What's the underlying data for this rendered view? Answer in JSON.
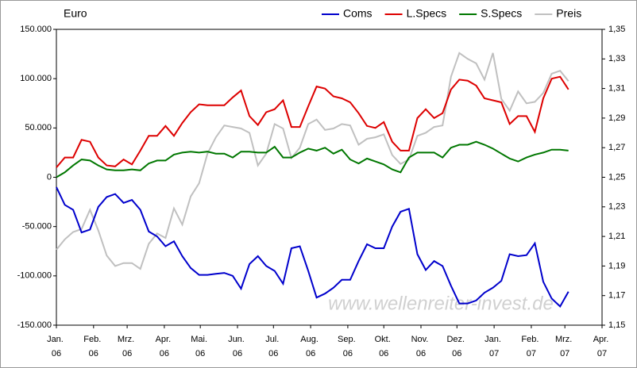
{
  "chart_data": {
    "type": "line",
    "y_label": "Euro",
    "watermark": "www.wellenreiter-invest.de",
    "x": [
      0,
      7,
      14,
      21,
      28,
      35,
      42,
      49,
      56,
      63,
      70,
      77,
      84,
      91,
      98,
      105,
      112,
      119,
      126,
      133,
      140,
      147,
      154,
      161,
      168,
      175,
      182,
      189,
      196,
      203,
      210,
      217,
      224,
      231,
      238,
      245,
      252,
      259,
      266,
      273,
      280,
      287,
      294,
      301,
      308,
      315,
      322,
      329,
      336,
      343,
      350,
      357,
      364,
      371,
      378,
      385,
      392,
      399,
      406,
      413,
      420,
      427
    ],
    "xlim": [
      0,
      455
    ],
    "xticks": [
      {
        "value": 0,
        "label": "Jan. 06"
      },
      {
        "value": 31,
        "label": "Feb. 06"
      },
      {
        "value": 59,
        "label": "Mrz. 06"
      },
      {
        "value": 90,
        "label": "Apr. 06"
      },
      {
        "value": 120,
        "label": "Mai. 06"
      },
      {
        "value": 151,
        "label": "Jun. 06"
      },
      {
        "value": 181,
        "label": "Jul. 06"
      },
      {
        "value": 212,
        "label": "Aug. 06"
      },
      {
        "value": 243,
        "label": "Sep. 06"
      },
      {
        "value": 273,
        "label": "Okt. 06"
      },
      {
        "value": 304,
        "label": "Nov. 06"
      },
      {
        "value": 334,
        "label": "Dez. 06"
      },
      {
        "value": 365,
        "label": "Jan. 07"
      },
      {
        "value": 396,
        "label": "Feb. 07"
      },
      {
        "value": 424,
        "label": "Mrz. 07"
      },
      {
        "value": 455,
        "label": "Apr. 07"
      }
    ],
    "ylim": [
      -150000,
      150000
    ],
    "yticks": [
      {
        "value": -150000,
        "label": "-150.000"
      },
      {
        "value": -100000,
        "label": "-100.000"
      },
      {
        "value": -50000,
        "label": "-50.000"
      },
      0,
      {
        "value": 50000,
        "label": "50.000"
      },
      {
        "value": 100000,
        "label": "100.000"
      },
      {
        "value": 150000,
        "label": "150.000"
      }
    ],
    "y2lim": [
      1.15,
      1.35
    ],
    "y2ticks": [
      {
        "value": 1.15,
        "label": "1,15"
      },
      {
        "value": 1.17,
        "label": "1,17"
      },
      {
        "value": 1.19,
        "label": "1,19"
      },
      {
        "value": 1.21,
        "label": "1,21"
      },
      {
        "value": 1.23,
        "label": "1,23"
      },
      {
        "value": 1.25,
        "label": "1,25"
      },
      {
        "value": 1.27,
        "label": "1,27"
      },
      {
        "value": 1.29,
        "label": "1,29"
      },
      {
        "value": 1.31,
        "label": "1,31"
      },
      {
        "value": 1.33,
        "label": "1,33"
      },
      {
        "value": 1.35,
        "label": "1,35"
      }
    ],
    "grid": false,
    "legend": "top-right",
    "series": [
      {
        "name": "Coms",
        "color": "#0000cc",
        "values": [
          -10000,
          -28000,
          -33000,
          -56000,
          -53000,
          -30000,
          -20000,
          -17000,
          -26000,
          -23000,
          -33000,
          -55000,
          -60000,
          -70000,
          -65000,
          -80000,
          -92000,
          -99000,
          -99000,
          -98000,
          -97000,
          -100000,
          -113000,
          -88000,
          -80000,
          -90000,
          -95000,
          -108000,
          -72000,
          -70000,
          -95000,
          -122000,
          -118000,
          -112000,
          -104000,
          -104000,
          -85000,
          -68000,
          -72000,
          -72000,
          -50000,
          -35000,
          -32000,
          -78000,
          -94000,
          -85000,
          -90000,
          -110000,
          -128000,
          -128000,
          -125000,
          -117000,
          -112000,
          -105000,
          -78000,
          -80000,
          -79000,
          -67000,
          -106000,
          -123000,
          -131000,
          -116000
        ]
      },
      {
        "name": "L.Specs",
        "color": "#dd0000",
        "values": [
          10000,
          20000,
          20000,
          38000,
          36000,
          20000,
          12000,
          11000,
          18000,
          13000,
          27000,
          42000,
          42000,
          52000,
          42000,
          55000,
          66000,
          74000,
          73000,
          73000,
          73000,
          81000,
          88000,
          62000,
          53000,
          66000,
          69000,
          78000,
          51000,
          51000,
          72000,
          92000,
          90000,
          82000,
          80000,
          76000,
          65000,
          52000,
          50000,
          56000,
          36000,
          27000,
          27000,
          60000,
          69000,
          60000,
          65000,
          89000,
          99000,
          98000,
          93000,
          80000,
          78000,
          76000,
          54000,
          62000,
          62000,
          46000,
          80000,
          100000,
          102000,
          89000
        ]
      },
      {
        "name": "S.Specs",
        "color": "#007700",
        "values": [
          0,
          5000,
          12000,
          18000,
          17000,
          12000,
          8000,
          7000,
          7000,
          8000,
          7000,
          14000,
          17000,
          17000,
          23000,
          25000,
          26000,
          25000,
          26000,
          24000,
          24000,
          20000,
          26000,
          26000,
          25000,
          25000,
          31000,
          20000,
          20000,
          25000,
          29000,
          27000,
          30000,
          24000,
          28000,
          18000,
          14000,
          19000,
          16000,
          13000,
          8000,
          5000,
          20000,
          25000,
          25000,
          25000,
          20000,
          30000,
          33000,
          33000,
          36000,
          33000,
          29000,
          24000,
          19000,
          16000,
          20000,
          23000,
          25000,
          28000,
          28000,
          27000
        ]
      },
      {
        "name": "Preis",
        "color": "#c0c0c0",
        "axis": "y2",
        "values": [
          1.201,
          1.208,
          1.213,
          1.215,
          1.228,
          1.214,
          1.197,
          1.19,
          1.192,
          1.192,
          1.188,
          1.205,
          1.212,
          1.209,
          1.229,
          1.218,
          1.237,
          1.246,
          1.266,
          1.277,
          1.285,
          1.284,
          1.283,
          1.28,
          1.258,
          1.266,
          1.286,
          1.283,
          1.263,
          1.27,
          1.286,
          1.289,
          1.282,
          1.283,
          1.286,
          1.285,
          1.272,
          1.276,
          1.277,
          1.279,
          1.265,
          1.259,
          1.262,
          1.278,
          1.28,
          1.284,
          1.285,
          1.318,
          1.334,
          1.33,
          1.327,
          1.316,
          1.334,
          1.303,
          1.295,
          1.308,
          1.3,
          1.301,
          1.307,
          1.32,
          1.322,
          1.315
        ]
      }
    ]
  }
}
